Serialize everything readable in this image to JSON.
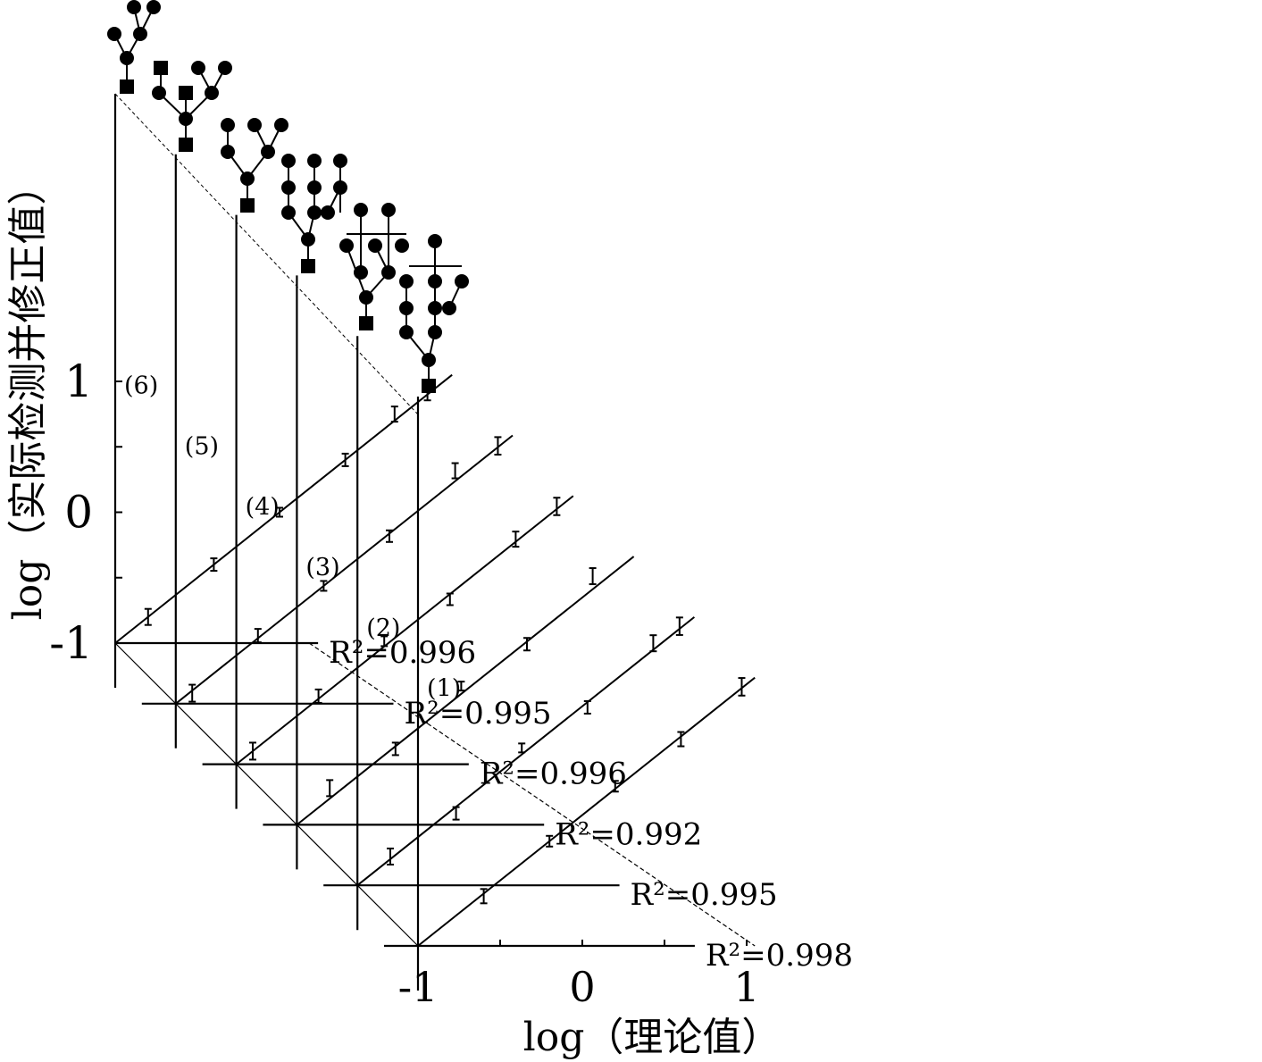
{
  "chart_data": {
    "type": "line",
    "layout": "staggered-3d",
    "xlabel": "log（理论值）",
    "ylabel": "log（实际检测并修正值）",
    "x_ticks": [
      "-1",
      "0",
      "1"
    ],
    "y_ticks": [
      "-1",
      "0",
      "1"
    ],
    "xlim": [
      -1,
      1
    ],
    "ylim": [
      -1,
      1
    ],
    "series": [
      {
        "label": "(1)",
        "r2_text": "R²=0.998",
        "fit": {
          "slope": 1,
          "intercept": 0
        },
        "points": [
          [
            -0.6,
            -0.62
          ],
          [
            -0.2,
            -0.2
          ],
          [
            0.2,
            0.22
          ],
          [
            0.6,
            0.58
          ],
          [
            0.97,
            0.98
          ]
        ]
      },
      {
        "label": "(2)",
        "r2_text": "R²=0.995",
        "fit": {
          "slope": 1,
          "intercept": 0
        },
        "points": [
          [
            -0.8,
            -0.78
          ],
          [
            -0.4,
            -0.45
          ],
          [
            0.0,
            0.05
          ],
          [
            0.4,
            0.36
          ],
          [
            0.8,
            0.85
          ],
          [
            0.96,
            0.98
          ]
        ]
      },
      {
        "label": "(3)",
        "r2_text": "R²=0.992",
        "fit": {
          "slope": 1,
          "intercept": 0
        },
        "points": [
          [
            -0.8,
            -0.72
          ],
          [
            -0.4,
            -0.42
          ],
          [
            0.0,
            0.06
          ],
          [
            0.4,
            0.38
          ],
          [
            0.8,
            0.9
          ]
        ]
      },
      {
        "label": "(4)",
        "r2_text": "R²=0.996",
        "fit": {
          "slope": 1,
          "intercept": 0
        },
        "points": [
          [
            -0.9,
            -0.9
          ],
          [
            -0.5,
            -0.48
          ],
          [
            -0.1,
            -0.06
          ],
          [
            0.3,
            0.26
          ],
          [
            0.7,
            0.72
          ],
          [
            0.95,
            0.97
          ]
        ]
      },
      {
        "label": "(5)",
        "r2_text": "R²=0.995",
        "fit": {
          "slope": 1,
          "intercept": 0
        },
        "points": [
          [
            -0.9,
            -0.92
          ],
          [
            -0.5,
            -0.48
          ],
          [
            -0.1,
            -0.1
          ],
          [
            0.3,
            0.28
          ],
          [
            0.7,
            0.78
          ],
          [
            0.96,
            0.97
          ]
        ]
      },
      {
        "label": "(6)",
        "r2_text": "R²=0.996",
        "fit": {
          "slope": 1,
          "intercept": 0
        },
        "points": [
          [
            -0.8,
            -0.8
          ],
          [
            -0.4,
            -0.4
          ],
          [
            0.0,
            0.0
          ],
          [
            0.4,
            0.4
          ],
          [
            0.7,
            0.75
          ],
          [
            0.9,
            0.92
          ]
        ]
      }
    ]
  }
}
